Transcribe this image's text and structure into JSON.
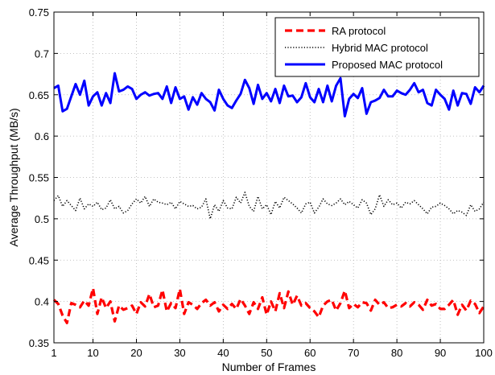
{
  "chart_data": {
    "type": "line",
    "xlabel": "Number of Frames",
    "ylabel": "Average Throughput (MB/s)",
    "xlim": [
      1,
      100
    ],
    "ylim": [
      0.35,
      0.75
    ],
    "xticks": [
      1,
      10,
      20,
      30,
      40,
      50,
      60,
      70,
      80,
      90,
      100
    ],
    "yticks": [
      0.35,
      0.4,
      0.45,
      0.5,
      0.55,
      0.6,
      0.65,
      0.7,
      0.75
    ],
    "xtick_labels": [
      "1",
      "10",
      "20",
      "30",
      "40",
      "50",
      "60",
      "70",
      "80",
      "90",
      "100"
    ],
    "ytick_labels": [
      "0.35",
      "0.4",
      "0.45",
      "0.5",
      "0.55",
      "0.6",
      "0.65",
      "0.7",
      "0.75"
    ],
    "grid": true,
    "legend_position": "top-right",
    "x": [
      1,
      2,
      3,
      4,
      5,
      6,
      7,
      8,
      9,
      10,
      11,
      12,
      13,
      14,
      15,
      16,
      17,
      18,
      19,
      20,
      21,
      22,
      23,
      24,
      25,
      26,
      27,
      28,
      29,
      30,
      31,
      32,
      33,
      34,
      35,
      36,
      37,
      38,
      39,
      40,
      41,
      42,
      43,
      44,
      45,
      46,
      47,
      48,
      49,
      50,
      51,
      52,
      53,
      54,
      55,
      56,
      57,
      58,
      59,
      60,
      61,
      62,
      63,
      64,
      65,
      66,
      67,
      68,
      69,
      70,
      71,
      72,
      73,
      74,
      75,
      76,
      77,
      78,
      79,
      80,
      81,
      82,
      83,
      84,
      85,
      86,
      87,
      88,
      89,
      90,
      91,
      92,
      93,
      94,
      95,
      96,
      97,
      98,
      99,
      100
    ],
    "series": [
      {
        "name": "RA protocol",
        "color": "#ff0000",
        "style": "dashed",
        "values": [
          0.402,
          0.397,
          0.383,
          0.374,
          0.398,
          0.396,
          0.393,
          0.401,
          0.395,
          0.416,
          0.385,
          0.405,
          0.392,
          0.4,
          0.376,
          0.395,
          0.39,
          0.392,
          0.395,
          0.385,
          0.399,
          0.394,
          0.409,
          0.393,
          0.395,
          0.414,
          0.388,
          0.398,
          0.392,
          0.415,
          0.385,
          0.399,
          0.396,
          0.391,
          0.398,
          0.402,
          0.395,
          0.399,
          0.388,
          0.396,
          0.391,
          0.397,
          0.391,
          0.403,
          0.395,
          0.385,
          0.399,
          0.391,
          0.405,
          0.384,
          0.4,
          0.388,
          0.41,
          0.392,
          0.412,
          0.396,
          0.407,
          0.395,
          0.398,
          0.392,
          0.388,
          0.381,
          0.395,
          0.4,
          0.402,
          0.389,
          0.398,
          0.413,
          0.392,
          0.397,
          0.393,
          0.399,
          0.398,
          0.389,
          0.402,
          0.396,
          0.399,
          0.392,
          0.393,
          0.396,
          0.394,
          0.398,
          0.394,
          0.399,
          0.396,
          0.39,
          0.402,
          0.395,
          0.397,
          0.391,
          0.391,
          0.396,
          0.402,
          0.384,
          0.396,
          0.389,
          0.401,
          0.397,
          0.386,
          0.394
        ]
      },
      {
        "name": "Hybrid MAC protocol",
        "color": "#000000",
        "style": "dotted",
        "values": [
          0.522,
          0.528,
          0.515,
          0.522,
          0.516,
          0.51,
          0.525,
          0.512,
          0.518,
          0.515,
          0.52,
          0.511,
          0.513,
          0.523,
          0.512,
          0.515,
          0.507,
          0.51,
          0.518,
          0.524,
          0.519,
          0.527,
          0.515,
          0.524,
          0.52,
          0.519,
          0.517,
          0.52,
          0.512,
          0.521,
          0.518,
          0.515,
          0.516,
          0.512,
          0.514,
          0.524,
          0.5,
          0.517,
          0.509,
          0.522,
          0.513,
          0.512,
          0.526,
          0.519,
          0.532,
          0.515,
          0.509,
          0.527,
          0.512,
          0.517,
          0.505,
          0.521,
          0.513,
          0.526,
          0.522,
          0.518,
          0.513,
          0.507,
          0.518,
          0.52,
          0.507,
          0.514,
          0.524,
          0.518,
          0.516,
          0.519,
          0.524,
          0.517,
          0.521,
          0.517,
          0.513,
          0.523,
          0.519,
          0.505,
          0.512,
          0.529,
          0.515,
          0.523,
          0.517,
          0.519,
          0.513,
          0.52,
          0.518,
          0.522,
          0.517,
          0.512,
          0.506,
          0.514,
          0.515,
          0.519,
          0.516,
          0.512,
          0.506,
          0.51,
          0.508,
          0.504,
          0.517,
          0.509,
          0.512,
          0.52
        ]
      },
      {
        "name": "Proposed MAC protocol",
        "color": "#0000ff",
        "style": "solid",
        "values": [
          0.658,
          0.661,
          0.63,
          0.633,
          0.648,
          0.663,
          0.65,
          0.667,
          0.637,
          0.648,
          0.653,
          0.637,
          0.652,
          0.64,
          0.676,
          0.654,
          0.656,
          0.66,
          0.657,
          0.645,
          0.65,
          0.653,
          0.649,
          0.651,
          0.652,
          0.645,
          0.66,
          0.64,
          0.659,
          0.645,
          0.648,
          0.632,
          0.647,
          0.638,
          0.652,
          0.645,
          0.641,
          0.631,
          0.656,
          0.645,
          0.637,
          0.634,
          0.643,
          0.651,
          0.668,
          0.658,
          0.639,
          0.662,
          0.645,
          0.652,
          0.642,
          0.657,
          0.64,
          0.661,
          0.648,
          0.649,
          0.641,
          0.647,
          0.664,
          0.647,
          0.641,
          0.657,
          0.641,
          0.661,
          0.642,
          0.661,
          0.67,
          0.624,
          0.645,
          0.651,
          0.646,
          0.658,
          0.627,
          0.641,
          0.643,
          0.646,
          0.656,
          0.648,
          0.648,
          0.655,
          0.652,
          0.65,
          0.656,
          0.664,
          0.653,
          0.656,
          0.64,
          0.637,
          0.656,
          0.65,
          0.645,
          0.632,
          0.655,
          0.637,
          0.652,
          0.651,
          0.639,
          0.659,
          0.653,
          0.661
        ]
      }
    ]
  }
}
